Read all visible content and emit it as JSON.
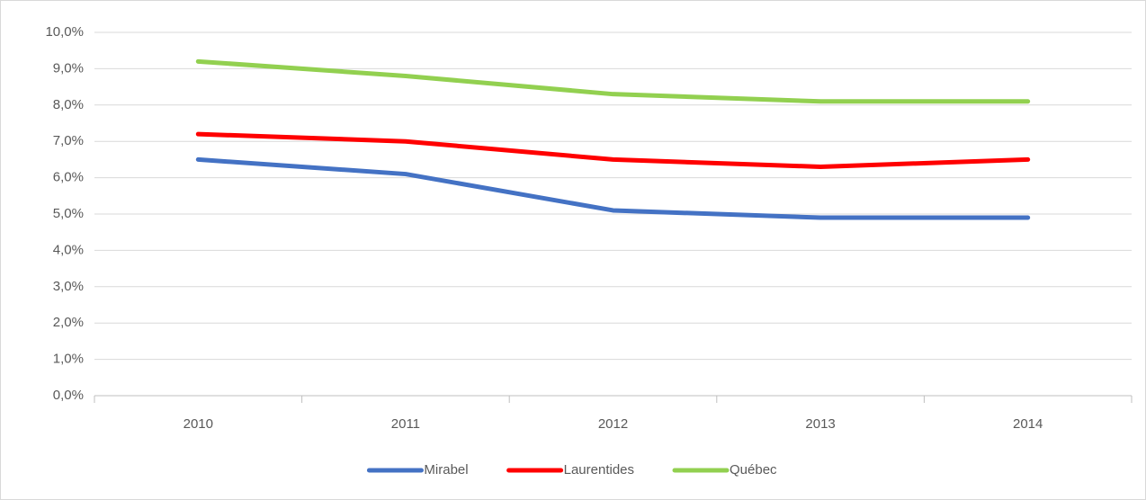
{
  "chart_data": {
    "type": "line",
    "categories": [
      "2010",
      "2011",
      "2012",
      "2013",
      "2014"
    ],
    "series": [
      {
        "name": "Mirabel",
        "color": "#4472c4",
        "values": [
          6.5,
          6.1,
          5.1,
          4.9,
          4.9
        ]
      },
      {
        "name": "Laurentides",
        "color": "#ff0000",
        "values": [
          7.2,
          7.0,
          6.5,
          6.3,
          6.5
        ]
      },
      {
        "name": "Québec",
        "color": "#92d050",
        "values": [
          9.2,
          8.8,
          8.3,
          8.1,
          8.1
        ]
      }
    ],
    "ylim": [
      0,
      10
    ],
    "yticks": [
      {
        "value": 0,
        "label": "0,0%"
      },
      {
        "value": 1,
        "label": "1,0%"
      },
      {
        "value": 2,
        "label": "2,0%"
      },
      {
        "value": 3,
        "label": "3,0%"
      },
      {
        "value": 4,
        "label": "4,0%"
      },
      {
        "value": 5,
        "label": "5,0%"
      },
      {
        "value": 6,
        "label": "6,0%"
      },
      {
        "value": 7,
        "label": "7,0%"
      },
      {
        "value": 8,
        "label": "8,0%"
      },
      {
        "value": 9,
        "label": "9,0%"
      },
      {
        "value": 10,
        "label": "10,0%"
      }
    ],
    "grid": true,
    "legend": "bottom"
  }
}
